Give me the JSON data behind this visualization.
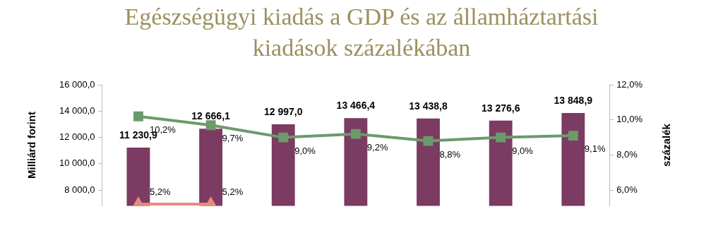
{
  "chart_data": {
    "type": "bar",
    "title": "Egészségügyi kiadás a GDP és az államháztartási kiadások százalékában",
    "ylabel": "Milliárd forint",
    "y2label": "százalék",
    "categories": [
      null,
      null,
      null,
      null,
      null,
      null,
      null
    ],
    "series": [
      {
        "color": "#7b3b62",
        "values": [
          11230.9,
          12666.1,
          12997.0,
          13466.4,
          13438.8,
          13276.6,
          13848.9
        ],
        "value_labels": [
          "11 230,9",
          "12 666,1",
          "12 997,0",
          "13 466,4",
          "13 438,8",
          "13 276,6",
          "13 848,9"
        ]
      },
      {
        "type": "line",
        "axis": "y2",
        "color": "#6b9a6b",
        "marker": "square",
        "values": [
          10.2,
          9.7,
          9.0,
          9.2,
          8.8,
          9.0,
          9.1
        ],
        "value_labels": [
          "10,2%",
          "9,7%",
          "9,0%",
          "9,2%",
          "8,8%",
          "9,0%",
          "9,1%"
        ]
      },
      {
        "type": "line",
        "axis": "y2",
        "color": "#e8897c",
        "marker": "triangle",
        "values": [
          5.2,
          5.2,
          null,
          null,
          null,
          null,
          null
        ],
        "value_labels": [
          "5,2%",
          "5,2%",
          null,
          null,
          null,
          null,
          null
        ]
      }
    ],
    "ylim": [
      6800,
      16000
    ],
    "yticks": [
      {
        "value": 8000,
        "label": "8 000,0"
      },
      {
        "value": 10000,
        "label": "10 000,0"
      },
      {
        "value": 12000,
        "label": "12 000,0"
      },
      {
        "value": 14000,
        "label": "14 000,0"
      },
      {
        "value": 16000,
        "label": "16 000,0"
      }
    ],
    "y2lim": [
      5.1,
      12
    ],
    "y2ticks": [
      {
        "value": 6,
        "label": "6,0%"
      },
      {
        "value": 8,
        "label": "8,0%"
      },
      {
        "value": 10,
        "label": "10,0%"
      },
      {
        "value": 12,
        "label": "12,0%"
      }
    ],
    "legend": false,
    "grid": false
  }
}
